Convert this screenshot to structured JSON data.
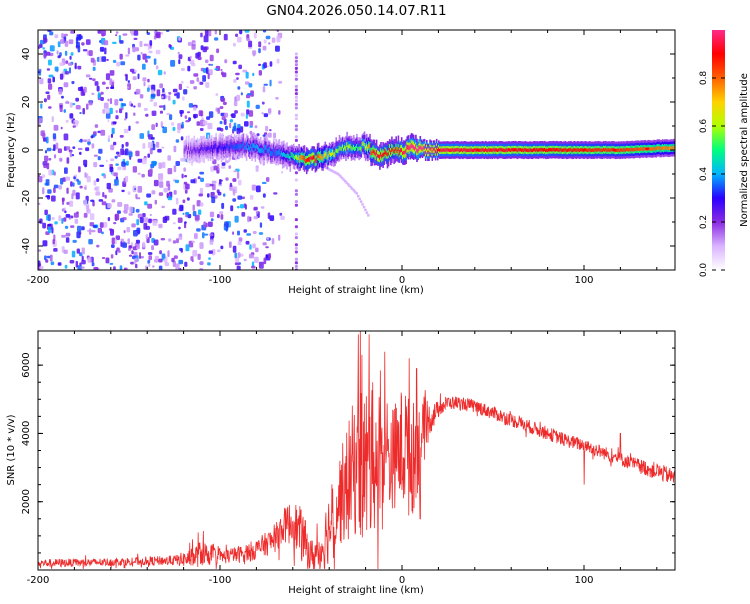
{
  "title": "GN04.2026.050.14.07.R11",
  "chart_data": [
    {
      "type": "heatmap",
      "name": "spectrogram",
      "xlabel": "Height of straight line (km)",
      "ylabel": "Frequency (Hz)",
      "xlim": [
        -200,
        150
      ],
      "ylim": [
        -50,
        50
      ],
      "x_ticks": [
        -200,
        -100,
        0,
        100
      ],
      "x_tick_labels": [
        "-200",
        "-100",
        "0",
        "100"
      ],
      "y_ticks": [
        -40,
        -20,
        0,
        20,
        40
      ],
      "y_tick_labels": [
        "-40",
        "-20",
        "0",
        "20",
        "40"
      ],
      "colorbar": {
        "label": "Normalized spectral amplitude",
        "range": [
          0,
          1
        ],
        "ticks": [
          0,
          0.2,
          0.4,
          0.6,
          0.8
        ],
        "tick_labels": [
          "0.0",
          "0.2",
          "0.4",
          "0.6",
          "0.8"
        ],
        "colors": [
          "#ffffff",
          "#d9b3ff",
          "#8a2be2",
          "#2a00ff",
          "#00b4ff",
          "#00ff7f",
          "#b0ff00",
          "#ffd200",
          "#ff6000",
          "#ff0000",
          "#ff2a8a"
        ]
      },
      "ridge": {
        "x": [
          -120,
          -110,
          -100,
          -90,
          -80,
          -70,
          -60,
          -55,
          -50,
          -45,
          -40,
          -35,
          -30,
          -25,
          -20,
          -15,
          -10,
          -5,
          0,
          5,
          10,
          20,
          40,
          60,
          80,
          100,
          120,
          150
        ],
        "freq": [
          0,
          0,
          1,
          2,
          1,
          -1,
          -3,
          -4,
          -4,
          -3,
          -2,
          0,
          2,
          1,
          2,
          -2,
          -2,
          0,
          -1,
          2,
          0,
          0,
          0,
          0,
          0,
          0,
          0,
          1
        ],
        "amplitude": [
          0.15,
          0.2,
          0.25,
          0.3,
          0.35,
          0.3,
          0.45,
          0.75,
          0.9,
          0.7,
          0.6,
          0.5,
          0.55,
          0.45,
          0.6,
          0.9,
          0.85,
          0.8,
          0.9,
          0.95,
          0.95,
          0.9,
          0.88,
          0.87,
          0.85,
          0.82,
          0.8,
          0.7
        ]
      },
      "noise_region": {
        "x_range": [
          -200,
          -85
        ],
        "freq_range": [
          -50,
          50
        ],
        "amplitude": 0.3
      },
      "vertical_streak": {
        "x": -58,
        "freq_range": [
          -50,
          40
        ]
      },
      "faint_arc": {
        "x": [
          -45,
          -35,
          -25,
          -18
        ],
        "freq": [
          -6,
          -10,
          -18,
          -28
        ]
      }
    },
    {
      "type": "line",
      "name": "snr",
      "xlabel": "Height of straight line (km)",
      "ylabel": "SNR (10 * v/v)",
      "xlim": [
        -200,
        150
      ],
      "ylim": [
        0,
        7000
      ],
      "x_ticks": [
        -200,
        -100,
        0,
        100
      ],
      "x_tick_labels": [
        "-200",
        "-100",
        "0",
        "100"
      ],
      "y_ticks": [
        2000,
        4000,
        6000
      ],
      "y_tick_labels": [
        "2000",
        "4000",
        "6000"
      ],
      "color": "#ee2b2b",
      "envelope": {
        "x": [
          -200,
          -170,
          -150,
          -125,
          -115,
          -110,
          -100,
          -90,
          -80,
          -70,
          -65,
          -60,
          -55,
          -50,
          -45,
          -40,
          -35,
          -30,
          -25,
          -20,
          -15,
          -10,
          -5,
          0,
          5,
          10,
          15,
          20,
          25,
          30,
          35,
          40,
          45,
          50,
          60,
          70,
          80,
          90,
          100,
          110,
          120,
          130,
          140,
          150
        ],
        "base": [
          200,
          220,
          250,
          280,
          350,
          500,
          380,
          450,
          600,
          900,
          1300,
          1400,
          1000,
          400,
          500,
          1300,
          2000,
          2500,
          3200,
          3000,
          3200,
          3300,
          3300,
          3600,
          3200,
          3700,
          4400,
          4700,
          4900,
          4900,
          4850,
          4800,
          4700,
          4600,
          4400,
          4200,
          4000,
          3800,
          3650,
          3450,
          3250,
          3050,
          2900,
          2700
        ],
        "amp": [
          120,
          120,
          120,
          150,
          300,
          400,
          200,
          250,
          300,
          400,
          500,
          700,
          800,
          500,
          700,
          1100,
          1300,
          1700,
          2200,
          2500,
          2000,
          2200,
          1500,
          1800,
          1800,
          1200,
          500,
          250,
          200,
          200,
          200,
          200,
          200,
          200,
          200,
          200,
          200,
          200,
          200,
          200,
          200,
          220,
          250,
          250
        ]
      },
      "spikes": [
        {
          "x": -115,
          "y": 900
        },
        {
          "x": -112,
          "y": 1100
        },
        {
          "x": -24,
          "y": 6900
        },
        {
          "x": -22,
          "y": 6300
        },
        {
          "x": -18,
          "y": 6900
        },
        {
          "x": -16,
          "y": 5500
        },
        {
          "x": 4,
          "y": 6200
        },
        {
          "x": 2,
          "y": 5100
        },
        {
          "x": 8,
          "y": 5900
        },
        {
          "x": 10,
          "y": 1500
        },
        {
          "x": 100,
          "y": 2500
        },
        {
          "x": 120,
          "y": 4000
        }
      ]
    }
  ]
}
